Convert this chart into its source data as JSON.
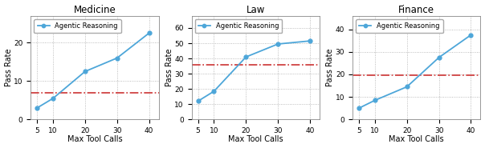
{
  "subplots": [
    {
      "title": "Medicine",
      "x": [
        5,
        10,
        20,
        30,
        40
      ],
      "y": [
        3.0,
        5.5,
        12.5,
        16.0,
        22.5
      ],
      "baseline": 7.0,
      "ylim": [
        0,
        27
      ],
      "yticks": [
        0,
        10,
        20
      ],
      "ylabel": "Pass Rate"
    },
    {
      "title": "Law",
      "x": [
        5,
        10,
        20,
        30,
        40
      ],
      "y": [
        12.0,
        18.5,
        41.0,
        49.5,
        51.5
      ],
      "baseline": 36.0,
      "ylim": [
        0,
        68
      ],
      "yticks": [
        0,
        10,
        20,
        30,
        40,
        50,
        60
      ],
      "ylabel": "Pass Rate"
    },
    {
      "title": "Finance",
      "x": [
        5,
        10,
        20,
        30,
        40
      ],
      "y": [
        5.0,
        8.5,
        14.5,
        27.5,
        37.5
      ],
      "baseline": 19.5,
      "ylim": [
        0,
        46
      ],
      "yticks": [
        0,
        10,
        20,
        30,
        40
      ],
      "ylabel": "Pass Rate"
    }
  ],
  "xlabel": "Max Tool Calls",
  "line_color": "#4da6d9",
  "baseline_color": "#cc3333",
  "legend_label": "Agentic Reasoning",
  "marker": "o",
  "xticks": [
    5,
    10,
    20,
    30,
    40
  ],
  "grid_color": "#aaaaaa",
  "bg_color": "#ffffff"
}
